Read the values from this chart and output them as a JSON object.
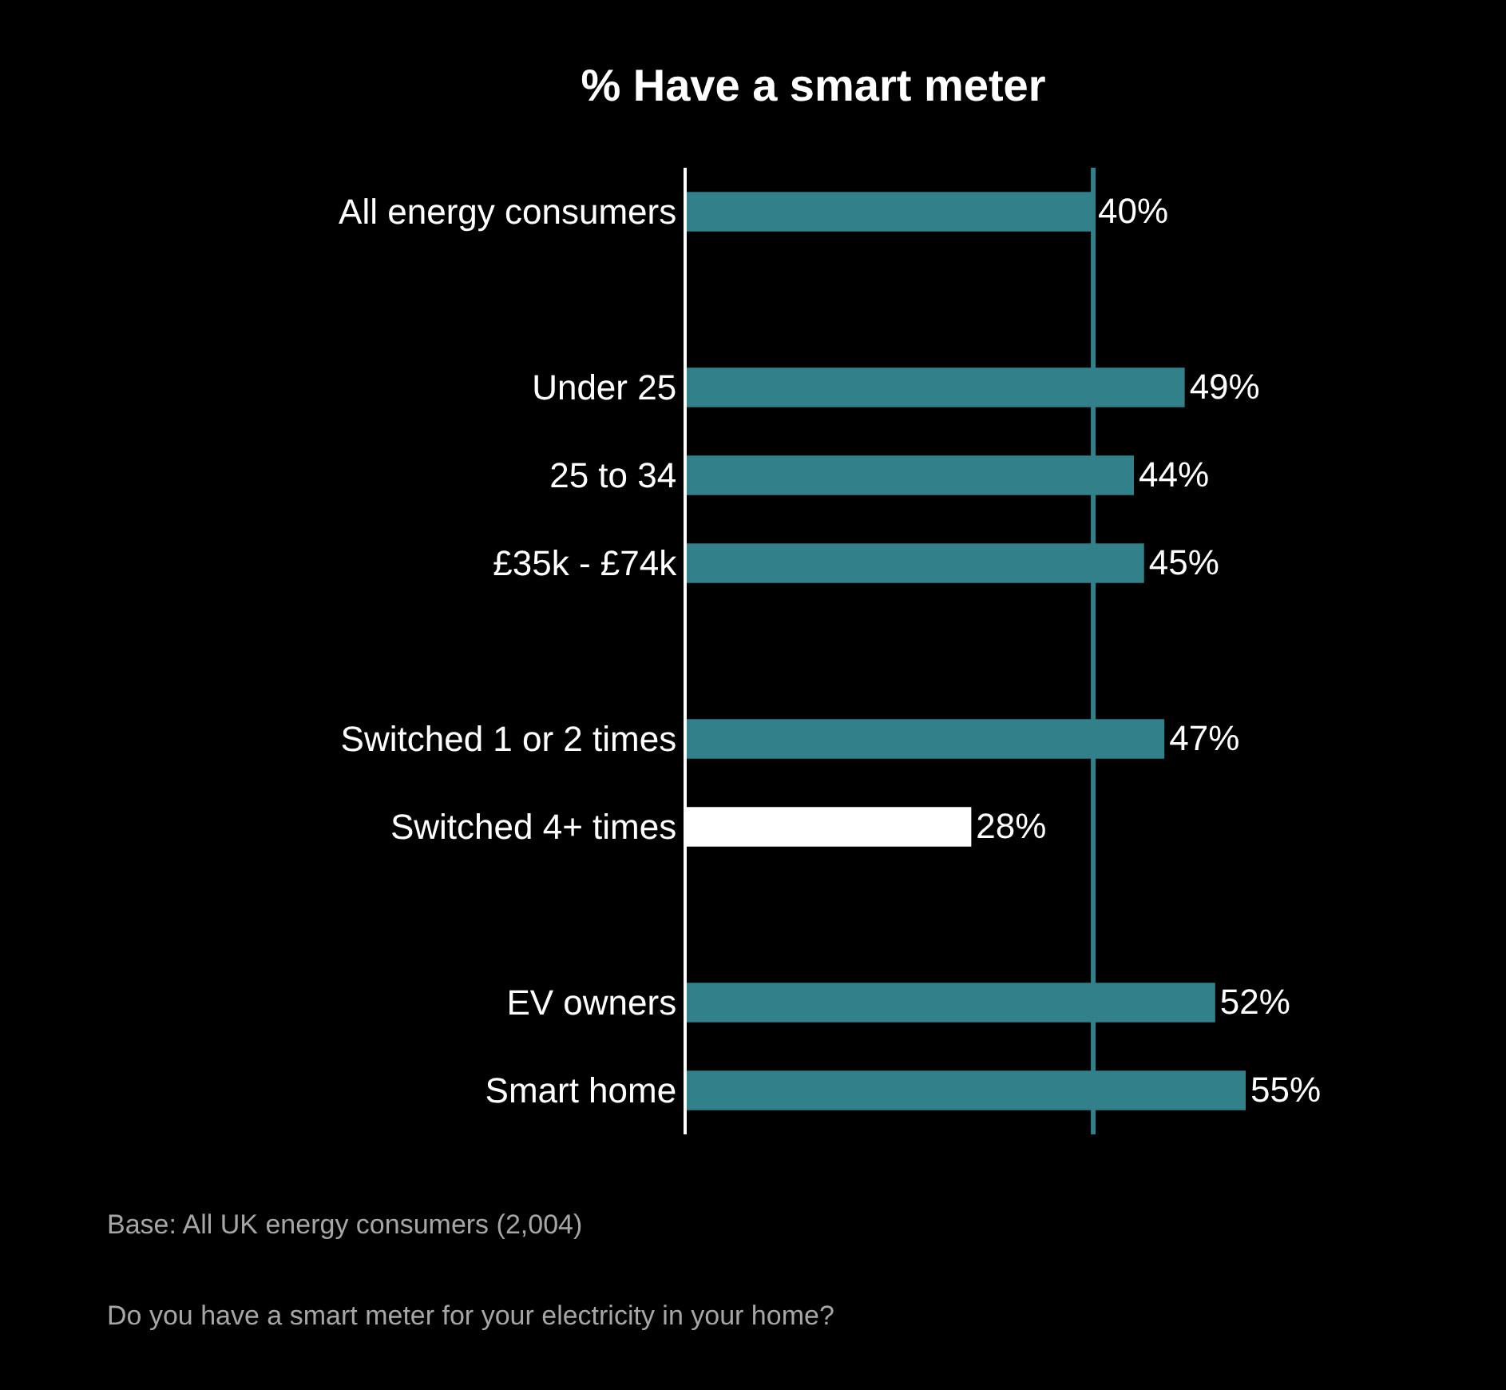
{
  "chart_data": {
    "type": "bar",
    "orientation": "horizontal",
    "title": "% Have a smart meter",
    "categories": [
      "All energy consumers",
      null,
      "Under 25",
      "25 to 34",
      "£35k - £74k",
      null,
      "Switched 1 or 2 times",
      "Switched 4+ times",
      null,
      "EV owners",
      "Smart home"
    ],
    "values": [
      40,
      null,
      49,
      44,
      45,
      null,
      47,
      28,
      null,
      52,
      55
    ],
    "colors": [
      "#31808a",
      null,
      "#31808a",
      "#31808a",
      "#31808a",
      null,
      "#31808a",
      "#ffffff",
      null,
      "#31808a",
      "#31808a"
    ],
    "value_labels": [
      "40%",
      null,
      "49%",
      "44%",
      "45%",
      null,
      "47%",
      "28%",
      null,
      "52%",
      "55%"
    ],
    "annotations": [
      "Base: All UK energy consumers (2,004)",
      "Do you have a smart meter for your electricity in your home?"
    ],
    "ref_lines": [
      {
        "axis": "x",
        "value": 40,
        "color": "#31808a"
      }
    ]
  }
}
